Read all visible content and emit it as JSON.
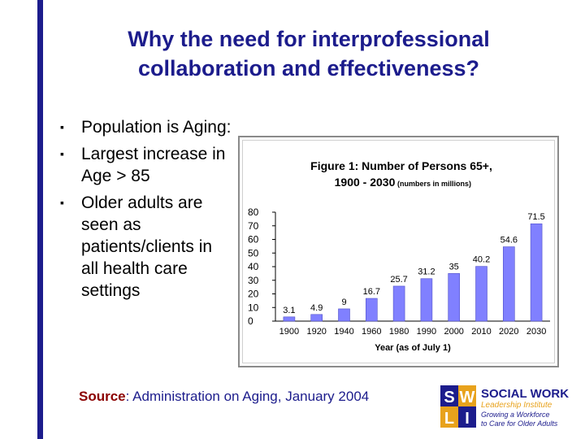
{
  "title": {
    "line1": "Why  the need for interprofessional",
    "line2": "collaboration and effectiveness?"
  },
  "bullets": [
    "Population is Aging:",
    "Largest increase in Age > 85",
    "Older adults are seen as patients/clients in all health care settings"
  ],
  "chart_data": {
    "type": "bar",
    "title_line1": "Figure 1: Number of Persons 65+,",
    "title_line2": "1900 - 2030",
    "title_note": "(numbers in millions)",
    "xlabel": "Year (as of July 1)",
    "categories": [
      "1900",
      "1920",
      "1940",
      "1960",
      "1980",
      "1990",
      "2000",
      "2010",
      "2020",
      "2030"
    ],
    "values": [
      3.1,
      4.9,
      9,
      16.7,
      25.7,
      31.2,
      35,
      40.2,
      54.6,
      71.5
    ],
    "value_labels": [
      "3.1",
      "4.9",
      "9",
      "16.7",
      "25.7",
      "31.2",
      "35",
      "40.2",
      "54.6",
      "71.5"
    ],
    "yticks": [
      "80",
      "70",
      "60",
      "50",
      "40",
      "30",
      "20",
      "10",
      "0"
    ],
    "ylim": [
      0,
      80
    ],
    "grid": false,
    "bar_color": "#8080ff"
  },
  "source": {
    "label": "Source",
    "text": ": Administration on Aging, January 2004"
  },
  "logo": {
    "letters": [
      "S",
      "W",
      "L",
      "I"
    ],
    "name": "SOCIAL WORK",
    "subtitle": "Leadership Institute",
    "tagline1": "Growing a Workforce",
    "tagline2": "to Care for Older Adults",
    "colors": {
      "blue": "#1c1c8c",
      "orange": "#e8a21c"
    }
  }
}
